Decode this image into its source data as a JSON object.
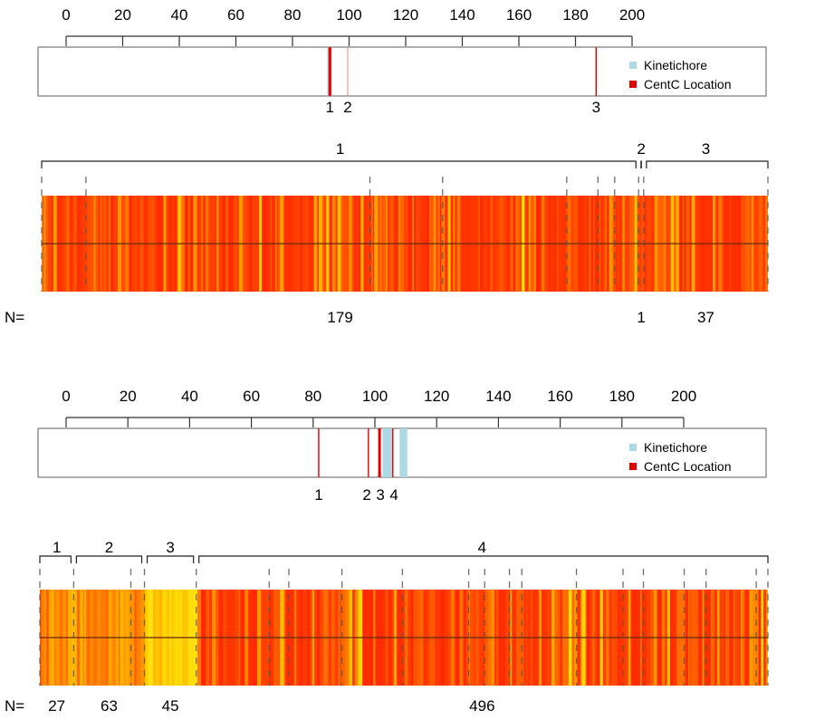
{
  "chart_data": [
    {
      "type": "bar",
      "panel": "top",
      "axis": {
        "ticks": [
          0,
          20,
          40,
          60,
          80,
          100,
          120,
          140,
          160,
          180,
          200
        ],
        "range": [
          0,
          200
        ]
      },
      "legend": {
        "placement": "top-right",
        "entries": [
          {
            "label": "Kinetichore",
            "color": "#add8e6"
          },
          {
            "label": "CentC Location",
            "color": "#e00000"
          }
        ]
      },
      "kinetochore": [
        [
          92.3,
          94.0
        ]
      ],
      "centc": [
        {
          "id": "1",
          "pos": 93.2
        },
        {
          "id": "2",
          "pos": 99.5
        },
        {
          "id": "3",
          "pos": 187.3
        }
      ],
      "centc_labels": [
        {
          "text": "1",
          "pos": 93.2
        },
        {
          "text": "2",
          "pos": 99.5
        },
        {
          "text": "3",
          "pos": 187.3
        }
      ],
      "heatmap": {
        "segments": [
          {
            "label": "1",
            "n": "179",
            "start": 0.0,
            "end": 0.822
          },
          {
            "label": "2",
            "n": "1",
            "start": 0.822,
            "end": 0.829
          },
          {
            "label": "3",
            "n": "37",
            "start": 0.829,
            "end": 1.0
          }
        ],
        "dashed_lines": [
          0.0,
          0.061,
          0.452,
          0.552,
          0.723,
          0.766,
          0.789,
          0.822,
          0.829,
          1.0
        ],
        "n_prefix": "N="
      }
    },
    {
      "type": "bar",
      "panel": "bottom",
      "axis": {
        "ticks": [
          0,
          20,
          40,
          60,
          80,
          100,
          120,
          140,
          160,
          180,
          200
        ],
        "range": [
          0,
          200
        ]
      },
      "legend": {
        "placement": "top-right",
        "entries": [
          {
            "label": "Kinetichore",
            "color": "#add8e6"
          },
          {
            "label": "CentC Location",
            "color": "#e00000"
          }
        ]
      },
      "kinetochore": [
        [
          102.5,
          106.0
        ],
        [
          108.0,
          110.5
        ]
      ],
      "centc": [
        {
          "id": "1",
          "pos": 81.8
        },
        {
          "id": "2",
          "pos": 97.9
        },
        {
          "id": "3",
          "pos": 101.5
        },
        {
          "id": "4",
          "pos": 105.8
        }
      ],
      "centc_labels": [
        {
          "text": "1",
          "pos": 81.8
        },
        {
          "text": "2",
          "pos": 97.4
        },
        {
          "text": "3",
          "pos": 101.8
        },
        {
          "text": "4",
          "pos": 106.2
        }
      ],
      "heatmap": {
        "segments": [
          {
            "label": "1",
            "n": "27",
            "start": 0.0,
            "end": 0.0465
          },
          {
            "label": "2",
            "n": "63",
            "start": 0.0465,
            "end": 0.1437
          },
          {
            "label": "3",
            "n": "45",
            "start": 0.1437,
            "end": 0.2148
          },
          {
            "label": "4",
            "n": "496",
            "start": 0.2148,
            "end": 1.0
          }
        ],
        "dashed_lines": [
          0.0,
          0.0465,
          0.125,
          0.1437,
          0.2148,
          0.315,
          0.342,
          0.415,
          0.498,
          0.589,
          0.611,
          0.645,
          0.662,
          0.737,
          0.801,
          0.829,
          0.885,
          0.915,
          0.984,
          1.0
        ],
        "n_prefix": "N="
      }
    }
  ]
}
